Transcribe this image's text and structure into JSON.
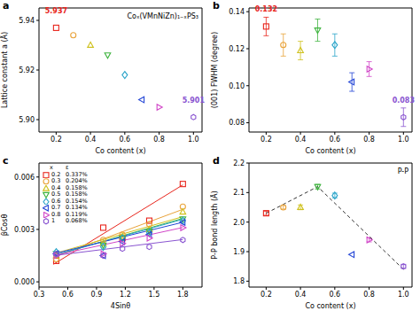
{
  "chart_data": [
    {
      "panel": "a",
      "type": "scatter",
      "xlabel": "Co content (x)",
      "ylabel": "Lattice constant a (Å)",
      "annotation": "Coₓ(VMnNiZn)₁₋ₓPS₃",
      "xlim": [
        0.1,
        1.05
      ],
      "xticks": [
        0.2,
        0.4,
        0.6,
        0.8,
        {
          "value": 1,
          "label": "1.0"
        }
      ],
      "ylim": [
        5.895,
        5.945
      ],
      "yticks": [
        {
          "value": 5.9,
          "label": "5.90"
        },
        5.92,
        5.94
      ],
      "series": [
        {
          "color": "#e8251c",
          "marker": "square",
          "x": [
            0.2
          ],
          "values": [
            5.937
          ],
          "value_labels": [
            "5.937"
          ]
        },
        {
          "color": "#e9a33a",
          "marker": "circle",
          "x": [
            0.3
          ],
          "values": [
            5.934
          ]
        },
        {
          "color": "#cfc11e",
          "marker": "triangle-up",
          "x": [
            0.4
          ],
          "values": [
            5.93
          ]
        },
        {
          "color": "#3db33d",
          "marker": "triangle-down",
          "x": [
            0.5
          ],
          "values": [
            5.926
          ]
        },
        {
          "color": "#2aa4c9",
          "marker": "diamond",
          "x": [
            0.6
          ],
          "values": [
            5.918
          ]
        },
        {
          "color": "#2345d6",
          "marker": "triangle-left",
          "x": [
            0.7
          ],
          "values": [
            5.908
          ]
        },
        {
          "color": "#d146c8",
          "marker": "triangle-right",
          "x": [
            0.8
          ],
          "values": [
            5.905
          ]
        },
        {
          "color": "#8a55d1",
          "marker": "hexagon",
          "x": [
            1.0
          ],
          "values": [
            5.901
          ],
          "value_labels": [
            "5.901"
          ]
        }
      ]
    },
    {
      "panel": "b",
      "type": "scatter",
      "xlabel": "Co content (x)",
      "ylabel": "(001) FWHM (degree)",
      "xlim": [
        0.1,
        1.05
      ],
      "xticks": [
        0.2,
        0.4,
        0.6,
        0.8,
        {
          "value": 1,
          "label": "1.0"
        }
      ],
      "ylim": [
        0.075,
        0.142
      ],
      "yticks": [
        0.08,
        {
          "value": 0.1,
          "label": "0.10"
        },
        0.12,
        0.14
      ],
      "series": [
        {
          "color": "#e8251c",
          "marker": "square",
          "x": [
            0.2
          ],
          "values": [
            0.132
          ],
          "errors": [
            0.005
          ],
          "value_labels": [
            "0.132"
          ]
        },
        {
          "color": "#e9a33a",
          "marker": "circle",
          "x": [
            0.3
          ],
          "values": [
            0.122
          ],
          "errors": [
            0.006
          ]
        },
        {
          "color": "#cfc11e",
          "marker": "triangle-up",
          "x": [
            0.4
          ],
          "values": [
            0.119
          ],
          "errors": [
            0.005
          ]
        },
        {
          "color": "#3db33d",
          "marker": "triangle-down",
          "x": [
            0.5
          ],
          "values": [
            0.13
          ],
          "errors": [
            0.006
          ]
        },
        {
          "color": "#2aa4c9",
          "marker": "diamond",
          "x": [
            0.6
          ],
          "values": [
            0.122
          ],
          "errors": [
            0.006
          ]
        },
        {
          "color": "#2345d6",
          "marker": "triangle-left",
          "x": [
            0.7
          ],
          "values": [
            0.102
          ],
          "errors": [
            0.005
          ]
        },
        {
          "color": "#d146c8",
          "marker": "triangle-right",
          "x": [
            0.8
          ],
          "values": [
            0.109
          ],
          "errors": [
            0.004
          ]
        },
        {
          "color": "#8a55d1",
          "marker": "hexagon",
          "x": [
            1.0
          ],
          "values": [
            0.083
          ],
          "errors": [
            0.005
          ],
          "value_labels": [
            "0.083"
          ]
        }
      ]
    },
    {
      "panel": "c",
      "type": "scatter",
      "xlabel": "4Sinθ",
      "ylabel": "βCosθ",
      "legend": "top-left",
      "legend_header": [
        "x",
        "ε"
      ],
      "xlim": [
        0.3,
        2.0
      ],
      "xticks": [
        0.3,
        0.6,
        0.9,
        1.2,
        1.5,
        1.8
      ],
      "ylim": [
        -0.0003,
        0.0068
      ],
      "yticks": [
        {
          "value": 0,
          "label": "0.000"
        },
        {
          "value": 0.003,
          "label": "0.003"
        },
        {
          "value": 0.006,
          "label": "0.006"
        }
      ],
      "series": [
        {
          "name": "0.2",
          "epsilon": "0.337%",
          "color": "#e8251c",
          "marker": "square",
          "x": [
            0.48,
            0.97,
            1.17,
            1.45,
            1.8
          ],
          "values": [
            0.0012,
            0.0031,
            0.0025,
            0.0035,
            0.0056
          ],
          "fit_x": [
            0.45,
            1.8
          ],
          "fit": [
            0.001,
            0.00555
          ]
        },
        {
          "name": "0.3",
          "epsilon": "0.204%",
          "color": "#e9a33a",
          "marker": "circle",
          "x": [
            0.48,
            0.97,
            1.17,
            1.45,
            1.8
          ],
          "values": [
            0.0013,
            0.0024,
            0.0027,
            0.0033,
            0.0043
          ],
          "fit_x": [
            0.45,
            1.8
          ],
          "fit": [
            0.0014,
            0.00415
          ]
        },
        {
          "name": "0.4",
          "epsilon": "0.158%",
          "color": "#cfc11e",
          "marker": "triangle-up",
          "x": [
            0.48,
            0.97,
            1.17,
            1.45,
            1.8
          ],
          "values": [
            0.0015,
            0.0022,
            0.0026,
            0.003,
            0.004
          ],
          "fit_x": [
            0.45,
            1.8
          ],
          "fit": [
            0.0016,
            0.00373
          ]
        },
        {
          "name": "0.5",
          "epsilon": "0.158%",
          "color": "#3db33d",
          "marker": "triangle-down",
          "x": [
            0.48,
            0.97,
            1.17,
            1.45,
            1.8
          ],
          "values": [
            0.0016,
            0.0021,
            0.0025,
            0.0029,
            0.0036
          ],
          "fit_x": [
            0.45,
            1.8
          ],
          "fit": [
            0.0015,
            0.00363
          ]
        },
        {
          "name": "0.6",
          "epsilon": "0.154%",
          "color": "#2aa4c9",
          "marker": "diamond",
          "x": [
            0.48,
            0.97,
            1.17,
            1.45,
            1.8
          ],
          "values": [
            0.0017,
            0.002,
            0.0025,
            0.0028,
            0.0035
          ],
          "fit_x": [
            0.45,
            1.8
          ],
          "fit": [
            0.0015,
            0.00358
          ]
        },
        {
          "name": "0.7",
          "epsilon": "0.134%",
          "color": "#2345d6",
          "marker": "triangle-left",
          "x": [
            0.48,
            0.97,
            1.17,
            1.45,
            1.8
          ],
          "values": [
            0.0016,
            0.0015,
            0.0023,
            0.0027,
            0.0034
          ],
          "fit_x": [
            0.45,
            1.8
          ],
          "fit": [
            0.0016,
            0.00341
          ]
        },
        {
          "name": "0.8",
          "epsilon": "0.119%",
          "color": "#d146c8",
          "marker": "triangle-right",
          "x": [
            0.48,
            0.97,
            1.17,
            1.45,
            1.8
          ],
          "values": [
            0.0015,
            0.0016,
            0.0022,
            0.0025,
            0.0031
          ],
          "fit_x": [
            0.45,
            1.8
          ],
          "fit": [
            0.0015,
            0.00311
          ]
        },
        {
          "name": "1",
          "epsilon": "0.068%",
          "color": "#8a55d1",
          "marker": "hexagon",
          "x": [
            0.48,
            0.97,
            1.17,
            1.45,
            1.8
          ],
          "values": [
            0.0016,
            0.0015,
            0.0019,
            0.002,
            0.0024
          ],
          "fit_x": [
            0.45,
            1.8
          ],
          "fit": [
            0.0015,
            0.00242
          ]
        }
      ]
    },
    {
      "panel": "d",
      "type": "scatter",
      "xlabel": "Co content (x)",
      "ylabel": "P-P bond length (Å)",
      "annotation": "P-P",
      "xlim": [
        0.1,
        1.05
      ],
      "xticks": [
        0.2,
        0.4,
        0.6,
        0.8,
        {
          "value": 1,
          "label": "1.0"
        }
      ],
      "ylim": [
        1.78,
        2.2
      ],
      "yticks": [
        1.8,
        1.9,
        {
          "value": 2,
          "label": "2.0"
        },
        2.1,
        2.2
      ],
      "series": [
        {
          "type": "line",
          "color": "#333333",
          "marker": "none",
          "line_style": "dashed",
          "x": [
            0.2,
            0.5,
            1.0
          ],
          "values": [
            2.03,
            2.12,
            1.84
          ]
        },
        {
          "color": "#e8251c",
          "marker": "square",
          "x": [
            0.2
          ],
          "values": [
            2.03
          ],
          "errors": [
            0.007
          ]
        },
        {
          "color": "#e9a33a",
          "marker": "circle",
          "x": [
            0.3
          ],
          "values": [
            2.05
          ],
          "errors": [
            0.006
          ]
        },
        {
          "color": "#cfc11e",
          "marker": "triangle-up",
          "x": [
            0.4
          ],
          "values": [
            2.05
          ],
          "errors": [
            0.008
          ]
        },
        {
          "color": "#3db33d",
          "marker": "triangle-down",
          "x": [
            0.5
          ],
          "values": [
            2.12
          ],
          "errors": [
            0.008
          ]
        },
        {
          "color": "#2aa4c9",
          "marker": "diamond",
          "x": [
            0.6
          ],
          "values": [
            2.09
          ],
          "errors": [
            0.008
          ]
        },
        {
          "color": "#2345d6",
          "marker": "triangle-left",
          "x": [
            0.7
          ],
          "values": [
            1.89
          ],
          "errors": [
            0.0
          ]
        },
        {
          "color": "#d146c8",
          "marker": "triangle-right",
          "x": [
            0.8
          ],
          "values": [
            1.94
          ],
          "errors": [
            0.007
          ]
        },
        {
          "color": "#8a55d1",
          "marker": "hexagon",
          "x": [
            1.0
          ],
          "values": [
            1.85
          ],
          "errors": [
            0.007
          ]
        }
      ]
    }
  ]
}
